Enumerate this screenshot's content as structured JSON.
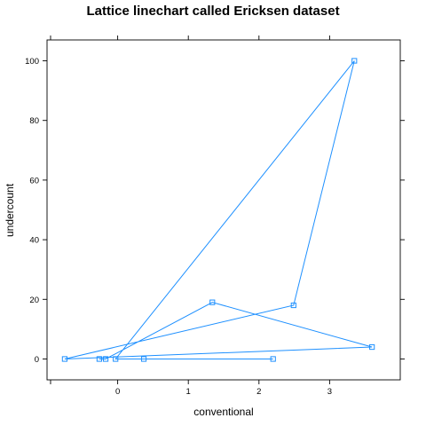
{
  "chart_data": {
    "type": "line",
    "title": "Lattice linechart called Ericksen dataset",
    "xlabel": "conventional",
    "ylabel": "undercount",
    "xlim": [
      -1,
      4
    ],
    "ylim": [
      -7,
      107
    ],
    "x_ticks": [
      0,
      1,
      2,
      3
    ],
    "y_ticks": [
      0,
      20,
      40,
      60,
      80,
      100
    ],
    "grid": false,
    "series": [
      {
        "color": "#1e90ff",
        "marker": "open-square",
        "points": [
          {
            "x": 2.2,
            "y": 0
          },
          {
            "x": 0.37,
            "y": 0
          },
          {
            "x": -0.03,
            "y": 0
          },
          {
            "x": 3.35,
            "y": 100
          },
          {
            "x": 2.49,
            "y": 18
          },
          {
            "x": -0.75,
            "y": 0
          },
          {
            "x": 3.6,
            "y": 4
          },
          {
            "x": 1.34,
            "y": 19
          },
          {
            "x": -0.17,
            "y": 0
          },
          {
            "x": -0.26,
            "y": 0
          }
        ]
      }
    ]
  }
}
